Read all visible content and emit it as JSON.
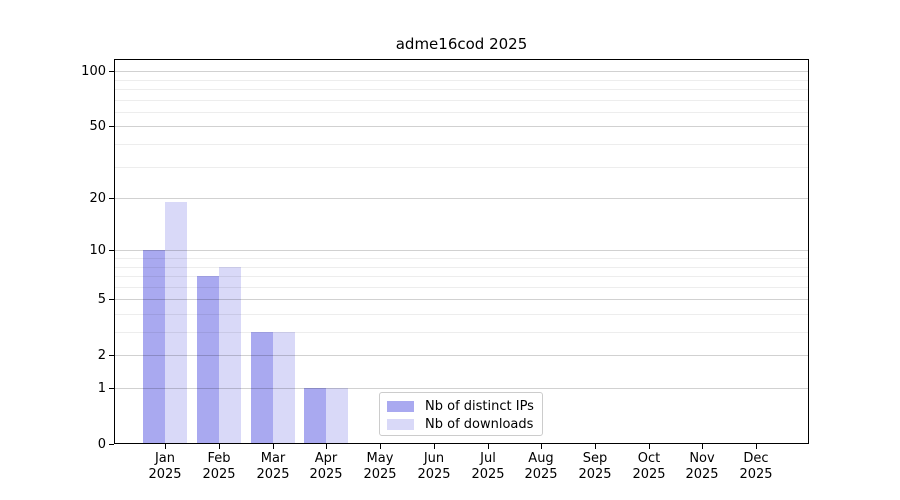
{
  "title": "adme16cod 2025",
  "chart_data": {
    "type": "bar",
    "title": "adme16cod 2025",
    "categories": [
      "Jan",
      "Feb",
      "Mar",
      "Apr",
      "May",
      "Jun",
      "Jul",
      "Aug",
      "Sep",
      "Oct",
      "Nov",
      "Dec"
    ],
    "x_tick_year": "2025",
    "series": [
      {
        "name": "Nb of distinct IPs",
        "color": "#a9a9f0",
        "values": [
          10,
          7,
          3,
          1,
          0,
          0,
          0,
          0,
          0,
          0,
          0,
          0
        ]
      },
      {
        "name": "Nb of downloads",
        "color": "#d9d9f8",
        "values": [
          19,
          8,
          3,
          1,
          0,
          0,
          0,
          0,
          0,
          0,
          0,
          0
        ]
      }
    ],
    "yscale": "log1p",
    "ylim": [
      0,
      100
    ],
    "y_ticks": [
      0,
      1,
      2,
      5,
      10,
      20,
      50,
      100
    ],
    "y_minor_gridlines": [
      3,
      4,
      6,
      7,
      8,
      9,
      30,
      40,
      60,
      70,
      80,
      90
    ],
    "grid": true,
    "legend_position": "lower center"
  }
}
